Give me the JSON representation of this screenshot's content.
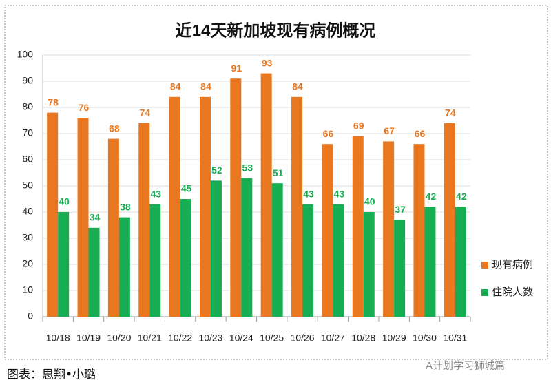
{
  "chart_data": {
    "type": "bar",
    "title": "近14天新加坡现有病例概况",
    "categories": [
      "10/18",
      "10/19",
      "10/20",
      "10/21",
      "10/22",
      "10/23",
      "10/24",
      "10/25",
      "10/26",
      "10/27",
      "10/28",
      "10/29",
      "10/30",
      "10/31"
    ],
    "series": [
      {
        "name": "现有病例",
        "color": "#e8771f",
        "values": [
          78,
          76,
          68,
          74,
          84,
          84,
          91,
          93,
          84,
          66,
          69,
          67,
          66,
          74
        ]
      },
      {
        "name": "住院人数",
        "color": "#17ad52",
        "values": [
          40,
          34,
          38,
          43,
          45,
          52,
          53,
          51,
          43,
          43,
          40,
          37,
          42,
          42
        ]
      }
    ],
    "ylim": [
      0,
      100
    ],
    "yticks": [
      0,
      10,
      20,
      30,
      40,
      50,
      60,
      70,
      80,
      90,
      100
    ],
    "grid": true,
    "legend": "right"
  },
  "caption": "图表：思翔•小璐",
  "watermark": "A计划学习狮城篇"
}
